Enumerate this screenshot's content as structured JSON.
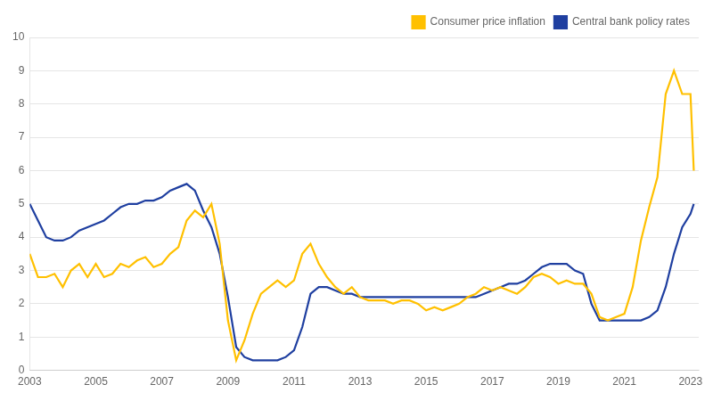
{
  "chart_data": {
    "type": "line",
    "x": [
      2003.0,
      2003.25,
      2003.5,
      2003.75,
      2004.0,
      2004.25,
      2004.5,
      2004.75,
      2005.0,
      2005.25,
      2005.5,
      2005.75,
      2006.0,
      2006.25,
      2006.5,
      2006.75,
      2007.0,
      2007.25,
      2007.5,
      2007.75,
      2008.0,
      2008.25,
      2008.5,
      2008.75,
      2009.0,
      2009.25,
      2009.5,
      2009.75,
      2010.0,
      2010.25,
      2010.5,
      2010.75,
      2011.0,
      2011.25,
      2011.5,
      2011.75,
      2012.0,
      2012.25,
      2012.5,
      2012.75,
      2013.0,
      2013.25,
      2013.5,
      2013.75,
      2014.0,
      2014.25,
      2014.5,
      2014.75,
      2015.0,
      2015.25,
      2015.5,
      2015.75,
      2016.0,
      2016.25,
      2016.5,
      2016.75,
      2017.0,
      2017.25,
      2017.5,
      2017.75,
      2018.0,
      2018.25,
      2018.5,
      2018.75,
      2019.0,
      2019.25,
      2019.5,
      2019.75,
      2020.0,
      2020.25,
      2020.5,
      2020.75,
      2021.0,
      2021.25,
      2021.5,
      2021.75,
      2022.0,
      2022.25,
      2022.5,
      2022.75,
      2023.0,
      2023.1
    ],
    "series": [
      {
        "name": "Consumer price inflation",
        "color": "#FFC000",
        "values": [
          3.5,
          2.8,
          2.8,
          2.9,
          2.5,
          3.0,
          3.2,
          2.8,
          3.2,
          2.8,
          2.9,
          3.2,
          3.1,
          3.3,
          3.4,
          3.1,
          3.2,
          3.5,
          3.7,
          4.5,
          4.8,
          4.6,
          5.0,
          3.8,
          1.5,
          0.3,
          0.9,
          1.7,
          2.3,
          2.5,
          2.7,
          2.5,
          2.7,
          3.5,
          3.8,
          3.2,
          2.8,
          2.5,
          2.3,
          2.5,
          2.2,
          2.1,
          2.1,
          2.1,
          2.0,
          2.1,
          2.1,
          2.0,
          1.8,
          1.9,
          1.8,
          1.9,
          2.0,
          2.2,
          2.3,
          2.5,
          2.4,
          2.5,
          2.4,
          2.3,
          2.5,
          2.8,
          2.9,
          2.8,
          2.6,
          2.7,
          2.6,
          2.6,
          2.3,
          1.6,
          1.5,
          1.6,
          1.7,
          2.5,
          3.9,
          4.9,
          5.8,
          8.3,
          9.0,
          8.3,
          8.3,
          6.0
        ]
      },
      {
        "name": "Central bank policy rates",
        "color": "#1F3FA0",
        "values": [
          5.0,
          4.5,
          4.0,
          3.9,
          3.9,
          4.0,
          4.2,
          4.3,
          4.4,
          4.5,
          4.7,
          4.9,
          5.0,
          5.0,
          5.1,
          5.1,
          5.2,
          5.4,
          5.5,
          5.6,
          5.4,
          4.8,
          4.3,
          3.5,
          2.2,
          0.7,
          0.4,
          0.3,
          0.3,
          0.3,
          0.3,
          0.4,
          0.6,
          1.3,
          2.3,
          2.5,
          2.5,
          2.4,
          2.3,
          2.3,
          2.2,
          2.2,
          2.2,
          2.2,
          2.2,
          2.2,
          2.2,
          2.2,
          2.2,
          2.2,
          2.2,
          2.2,
          2.2,
          2.2,
          2.2,
          2.3,
          2.4,
          2.5,
          2.6,
          2.6,
          2.7,
          2.9,
          3.1,
          3.2,
          3.2,
          3.2,
          3.0,
          2.9,
          2.0,
          1.5,
          1.5,
          1.5,
          1.5,
          1.5,
          1.5,
          1.6,
          1.8,
          2.5,
          3.5,
          4.3,
          4.7,
          5.0
        ]
      }
    ],
    "xlim": [
      2003.0,
      2023.25
    ],
    "xticks": [
      2003,
      2005,
      2007,
      2009,
      2011,
      2013,
      2015,
      2017,
      2019,
      2021,
      2023
    ],
    "ylim": [
      0,
      10
    ],
    "yticks": [
      0,
      1,
      2,
      3,
      4,
      5,
      6,
      7,
      8,
      9,
      10
    ],
    "grid": "y",
    "legend": "upper right"
  }
}
